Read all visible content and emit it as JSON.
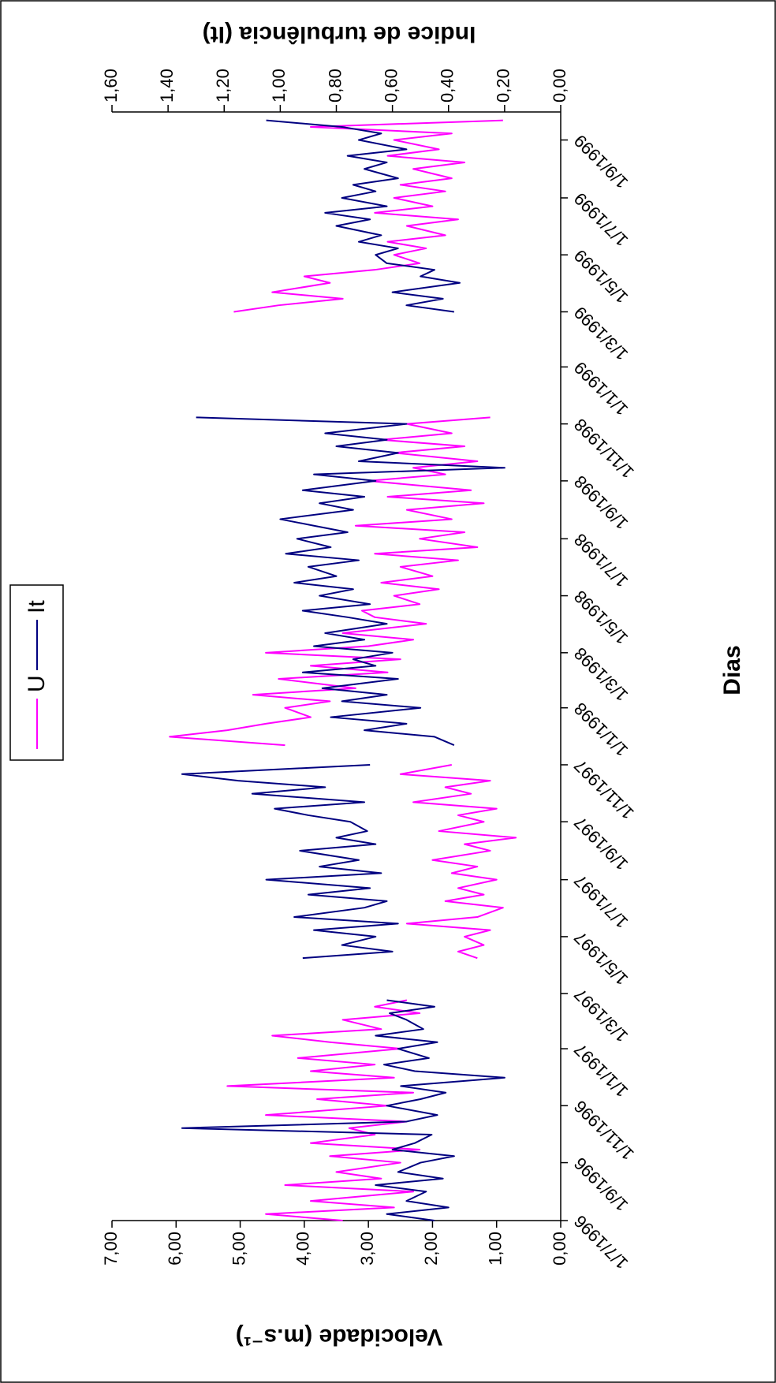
{
  "chart_data": {
    "type": "line",
    "x_label": "Dias",
    "y_label": "Velocidade (m.s⁻¹)",
    "y2_label": "Indice de turbulência (It)",
    "legend": "top",
    "xlim": [
      "1996-07-01",
      "1999-10-01"
    ],
    "xticks": [
      {
        "value": "1996-07-01",
        "label": "1/7/1996"
      },
      {
        "value": "1996-09-01",
        "label": "1/9/1996"
      },
      {
        "value": "1996-11-01",
        "label": "1/11/1996"
      },
      {
        "value": "1997-01-01",
        "label": "1/1/1997"
      },
      {
        "value": "1997-03-01",
        "label": "1/3/1997"
      },
      {
        "value": "1997-05-01",
        "label": "1/5/1997"
      },
      {
        "value": "1997-07-01",
        "label": "1/7/1997"
      },
      {
        "value": "1997-09-01",
        "label": "1/9/1997"
      },
      {
        "value": "1997-11-01",
        "label": "1/11/1997"
      },
      {
        "value": "1998-01-01",
        "label": "1/1/1998"
      },
      {
        "value": "1998-03-01",
        "label": "1/3/1998"
      },
      {
        "value": "1998-05-01",
        "label": "1/5/1998"
      },
      {
        "value": "1998-07-01",
        "label": "1/7/1998"
      },
      {
        "value": "1998-09-01",
        "label": "1/9/1998"
      },
      {
        "value": "1998-11-01",
        "label": "1/11/1998"
      },
      {
        "value": "1999-01-01",
        "label": "1/1/1999"
      },
      {
        "value": "1999-03-01",
        "label": "1/3/1999"
      },
      {
        "value": "1999-05-01",
        "label": "1/5/1999"
      },
      {
        "value": "1999-07-01",
        "label": "1/7/1999"
      },
      {
        "value": "1999-09-01",
        "label": "1/9/1999"
      }
    ],
    "ylim": [
      0,
      7
    ],
    "yticks": [
      {
        "value": 0,
        "label": "0,00"
      },
      {
        "value": 1,
        "label": "1,00"
      },
      {
        "value": 2,
        "label": "2,00"
      },
      {
        "value": 3,
        "label": "3,00"
      },
      {
        "value": 4,
        "label": "4,00"
      },
      {
        "value": 5,
        "label": "5,00"
      },
      {
        "value": 6,
        "label": "6,00"
      },
      {
        "value": 7,
        "label": "7,00"
      }
    ],
    "y2lim": [
      0,
      1.6
    ],
    "y2ticks": [
      {
        "value": 0,
        "label": "0,00"
      },
      {
        "value": 0.2,
        "label": "0,20"
      },
      {
        "value": 0.4,
        "label": "0,40"
      },
      {
        "value": 0.6,
        "label": "0,60"
      },
      {
        "value": 0.8,
        "label": "0,80"
      },
      {
        "value": 1,
        "label": "1,00"
      },
      {
        "value": 1.2,
        "label": "1,20"
      },
      {
        "value": 1.4,
        "label": "1,40"
      },
      {
        "value": 1.6,
        "label": "1,60"
      }
    ],
    "x": [
      "1996-07-01",
      "1996-07-08",
      "1996-07-15",
      "1996-07-22",
      "1996-08-01",
      "1996-08-08",
      "1996-08-15",
      "1996-08-22",
      "1996-09-01",
      "1996-09-08",
      "1996-09-15",
      "1996-09-22",
      "1996-10-01",
      "1996-10-08",
      "1996-10-15",
      "1996-10-22",
      "1996-11-01",
      "1996-11-08",
      "1996-11-15",
      "1996-11-22",
      "1996-12-01",
      "1996-12-08",
      "1996-12-15",
      "1996-12-22",
      "1997-01-01",
      "1997-01-08",
      "1997-01-15",
      "1997-01-22",
      "1997-02-01",
      "1997-02-08",
      "1997-02-15",
      "1997-02-22",
      "1997-03-15",
      "1997-04-08",
      "1997-04-15",
      "1997-04-22",
      "1997-05-01",
      "1997-05-08",
      "1997-05-15",
      "1997-05-22",
      "1997-06-01",
      "1997-06-08",
      "1997-06-15",
      "1997-06-22",
      "1997-07-01",
      "1997-07-08",
      "1997-07-15",
      "1997-07-22",
      "1997-08-01",
      "1997-08-08",
      "1997-08-15",
      "1997-08-22",
      "1997-09-01",
      "1997-09-08",
      "1997-09-15",
      "1997-09-22",
      "1997-10-01",
      "1997-10-08",
      "1997-10-15",
      "1997-10-22",
      "1997-11-01",
      "1997-11-15",
      "1997-11-22",
      "1997-12-01",
      "1997-12-08",
      "1997-12-15",
      "1997-12-22",
      "1998-01-01",
      "1998-01-08",
      "1998-01-15",
      "1998-01-22",
      "1998-02-01",
      "1998-02-08",
      "1998-02-15",
      "1998-02-22",
      "1998-03-01",
      "1998-03-08",
      "1998-03-15",
      "1998-03-22",
      "1998-04-01",
      "1998-04-08",
      "1998-04-15",
      "1998-04-22",
      "1998-05-01",
      "1998-05-08",
      "1998-05-15",
      "1998-05-22",
      "1998-06-01",
      "1998-06-08",
      "1998-06-15",
      "1998-06-22",
      "1998-07-01",
      "1998-07-08",
      "1998-07-15",
      "1998-07-22",
      "1998-08-01",
      "1998-08-08",
      "1998-08-15",
      "1998-08-22",
      "1998-09-01",
      "1998-09-08",
      "1998-09-15",
      "1998-09-22",
      "1998-10-01",
      "1998-10-08",
      "1998-10-15",
      "1998-10-22",
      "1998-11-01",
      "1998-11-08",
      "1999-01-01",
      "1999-03-01",
      "1999-03-08",
      "1999-03-15",
      "1999-03-22",
      "1999-04-01",
      "1999-04-08",
      "1999-04-15",
      "1999-04-22",
      "1999-05-01",
      "1999-05-08",
      "1999-05-15",
      "1999-05-22",
      "1999-06-01",
      "1999-06-08",
      "1999-06-15",
      "1999-06-22",
      "1999-07-01",
      "1999-07-08",
      "1999-07-15",
      "1999-07-22",
      "1999-08-01",
      "1999-08-08",
      "1999-08-15",
      "1999-08-22",
      "1999-09-01",
      "1999-09-08",
      "1999-09-15",
      "1999-09-22"
    ],
    "series": [
      {
        "name": "U",
        "color": "#ff00ff",
        "values": [
          3.4,
          4.6,
          2.6,
          3.9,
          2.3,
          4.3,
          2.8,
          3.5,
          2.5,
          3.6,
          2.2,
          3.9,
          2.9,
          3.3,
          2.4,
          4.6,
          2.7,
          3.8,
          2.3,
          5.2,
          2.6,
          3.9,
          2.9,
          4.1,
          2.5,
          3.6,
          4.5,
          2.8,
          3.4,
          2.2,
          2.9,
          2.4,
          null,
          1.3,
          1.6,
          1.2,
          1.5,
          1.1,
          2.4,
          1.3,
          0.9,
          1.8,
          1.2,
          1.6,
          1.0,
          1.7,
          1.3,
          2.0,
          1.1,
          1.5,
          0.7,
          1.9,
          1.2,
          1.6,
          1.0,
          2.3,
          1.4,
          1.8,
          1.1,
          2.5,
          1.7,
          null,
          4.3,
          6.1,
          5.2,
          4.6,
          3.9,
          4.3,
          3.6,
          4.8,
          3.2,
          4.4,
          2.7,
          3.9,
          2.5,
          4.6,
          3.0,
          2.3,
          3.4,
          2.1,
          2.9,
          3.1,
          2.2,
          2.6,
          1.9,
          2.8,
          2.0,
          2.5,
          1.6,
          2.9,
          1.3,
          2.2,
          1.5,
          3.2,
          1.7,
          2.4,
          1.2,
          2.7,
          1.4,
          3.0,
          1.8,
          2.3,
          1.3,
          2.6,
          1.5,
          2.8,
          1.7,
          2.4,
          1.1,
          null,
          5.1,
          4.4,
          3.4,
          4.5,
          3.6,
          4.0,
          2.9,
          2.2,
          2.6,
          2.1,
          2.7,
          1.8,
          2.4,
          1.6,
          2.9,
          2.0,
          2.6,
          1.8,
          2.5,
          1.7,
          2.3,
          1.5,
          2.7,
          1.9,
          2.6,
          1.7,
          3.9,
          0.9
        ]
      },
      {
        "name": "It",
        "color": "#000080",
        "axis": "y2",
        "values": [
          0.45,
          0.62,
          0.4,
          0.55,
          0.48,
          0.66,
          0.42,
          0.58,
          0.5,
          0.38,
          0.6,
          0.52,
          0.46,
          1.35,
          0.55,
          0.44,
          0.62,
          0.5,
          0.41,
          0.57,
          0.2,
          0.52,
          0.63,
          0.47,
          0.58,
          0.44,
          0.66,
          0.49,
          0.55,
          0.61,
          0.45,
          0.62,
          null,
          0.92,
          0.6,
          0.78,
          0.66,
          0.88,
          0.58,
          0.95,
          0.7,
          0.62,
          0.9,
          0.68,
          1.05,
          0.64,
          0.86,
          0.72,
          0.93,
          0.66,
          0.8,
          0.69,
          0.75,
          0.9,
          1.02,
          0.7,
          1.1,
          0.84,
          1.15,
          1.35,
          0.68,
          null,
          0.38,
          0.45,
          0.7,
          0.55,
          0.82,
          0.5,
          0.78,
          0.62,
          0.85,
          0.58,
          0.92,
          0.66,
          0.74,
          0.6,
          0.88,
          0.7,
          0.84,
          0.62,
          0.76,
          0.92,
          0.68,
          0.86,
          0.74,
          0.95,
          0.8,
          0.9,
          0.72,
          0.98,
          0.82,
          0.94,
          0.76,
          0.88,
          1.0,
          0.74,
          0.86,
          0.7,
          0.92,
          0.66,
          0.88,
          0.2,
          0.72,
          0.58,
          0.8,
          0.62,
          0.84,
          0.55,
          1.3,
          null,
          0.38,
          0.55,
          0.42,
          0.6,
          0.36,
          0.5,
          0.45,
          0.62,
          0.66,
          0.58,
          0.72,
          0.64,
          0.8,
          0.68,
          0.84,
          0.62,
          0.78,
          0.66,
          0.74,
          0.58,
          0.7,
          0.62,
          0.76,
          0.55,
          0.72,
          0.64,
          0.78,
          1.05
        ]
      }
    ]
  }
}
